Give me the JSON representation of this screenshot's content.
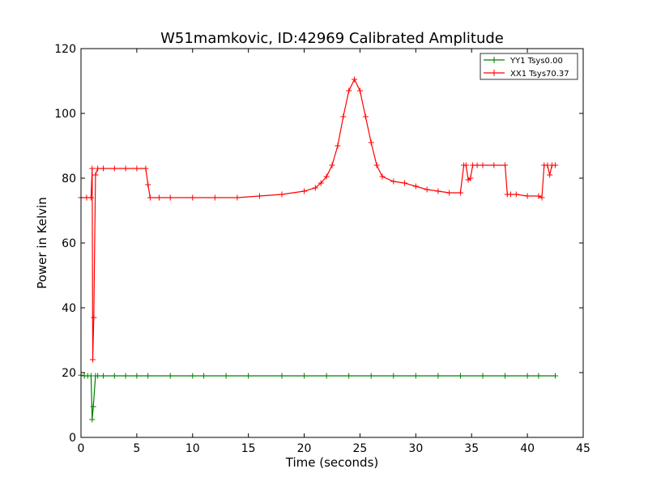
{
  "chart_data": {
    "type": "line",
    "title": "W51mamkovic, ID:42969 Calibrated Amplitude",
    "xlabel": "Time (seconds)",
    "ylabel": "Power in Kelvin",
    "xlim": [
      0,
      45
    ],
    "ylim": [
      0,
      120
    ],
    "xticks": [
      0,
      5,
      10,
      15,
      20,
      25,
      30,
      35,
      40,
      45
    ],
    "yticks": [
      0,
      20,
      40,
      60,
      80,
      100,
      120
    ],
    "grid": false,
    "legend_position": "top-right",
    "marker": "plus",
    "series": [
      {
        "name": "YY1 Tsys0.00",
        "color": "#008000",
        "x": [
          0.0,
          0.3,
          0.6,
          0.9,
          1.0,
          1.1,
          1.3,
          1.5,
          2.0,
          3.0,
          4.0,
          5.0,
          6.0,
          8.0,
          10.0,
          11.0,
          13.0,
          15.0,
          18.0,
          20.0,
          22.0,
          24.0,
          26.0,
          28.0,
          30.0,
          32.0,
          34.0,
          36.0,
          38.0,
          40.0,
          41.0,
          42.5
        ],
        "y": [
          19.2,
          19.0,
          19.0,
          19.0,
          5.5,
          9.5,
          19.0,
          19.0,
          19.0,
          19.0,
          19.0,
          19.0,
          19.0,
          19.0,
          19.0,
          19.0,
          19.0,
          19.0,
          19.0,
          19.0,
          19.0,
          19.0,
          19.0,
          19.0,
          19.0,
          19.0,
          19.0,
          19.0,
          19.0,
          19.0,
          19.0,
          19.0
        ]
      },
      {
        "name": "XX1 Tsys70.37",
        "color": "#ff0000",
        "x": [
          0.0,
          0.5,
          0.9,
          1.0,
          1.05,
          1.15,
          1.3,
          1.5,
          2.0,
          3.0,
          4.0,
          5.0,
          5.8,
          6.0,
          6.2,
          7.0,
          8.0,
          10.0,
          12.0,
          14.0,
          16.0,
          18.0,
          20.0,
          21.0,
          21.5,
          22.0,
          22.5,
          23.0,
          23.5,
          24.0,
          24.5,
          25.0,
          25.5,
          26.0,
          26.5,
          27.0,
          28.0,
          29.0,
          30.0,
          31.0,
          32.0,
          33.0,
          34.0,
          34.3,
          34.5,
          34.7,
          34.9,
          35.1,
          35.5,
          36.0,
          37.0,
          38.0,
          38.2,
          38.5,
          39.0,
          40.0,
          41.0,
          41.3,
          41.5,
          41.8,
          42.0,
          42.2,
          42.5
        ],
        "y": [
          74.0,
          74.0,
          74.0,
          83.0,
          24.0,
          37.0,
          81.0,
          83.0,
          83.0,
          83.0,
          83.0,
          83.0,
          83.0,
          78.0,
          74.0,
          74.0,
          74.0,
          74.0,
          74.0,
          74.0,
          74.5,
          75.0,
          76.0,
          77.0,
          78.5,
          80.5,
          84.0,
          90.0,
          99.0,
          107.0,
          110.5,
          107.0,
          99.0,
          91.0,
          84.0,
          80.5,
          79.0,
          78.5,
          77.5,
          76.5,
          76.0,
          75.5,
          75.5,
          84.0,
          84.0,
          79.5,
          80.0,
          84.0,
          84.0,
          84.0,
          84.0,
          84.0,
          75.0,
          75.0,
          75.0,
          74.5,
          74.5,
          74.0,
          84.0,
          84.0,
          81.0,
          84.0,
          84.0
        ]
      }
    ]
  }
}
